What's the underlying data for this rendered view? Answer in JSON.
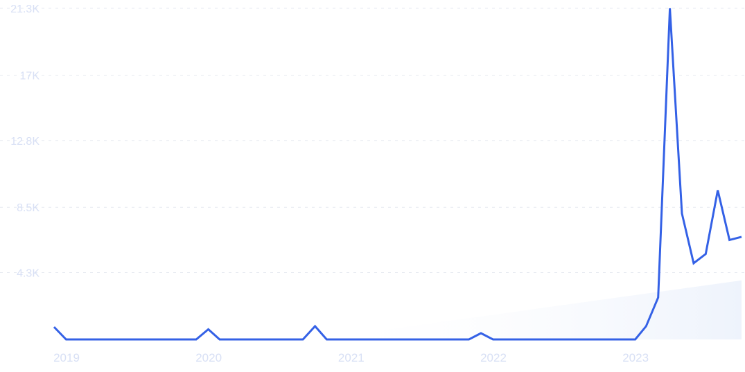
{
  "chart_data": {
    "type": "line",
    "title": "",
    "xlabel": "",
    "ylabel": "",
    "y_ticks": [
      "21.3K",
      "17K",
      "12.8K",
      "8.5K",
      "4.3K"
    ],
    "y_tick_values": [
      21300,
      17000,
      12800,
      8500,
      4300
    ],
    "x_ticks": [
      "2019",
      "2020",
      "2021",
      "2022",
      "2023"
    ],
    "x_tick_dates": [
      "2019-01-01",
      "2020-01-01",
      "2021-01-01",
      "2022-01-01",
      "2023-01-01"
    ],
    "ylim": [
      0,
      21300
    ],
    "xlim": [
      "2019-01-01",
      "2023-11-01"
    ],
    "grid": true,
    "legend": "none",
    "colors": {
      "line": "#3461e6",
      "trend_fill": "#f2f6fd",
      "tick_text": "#d8e0f5",
      "grid": "#e6e9f0"
    },
    "series": [
      {
        "x": [
          "2019-01-01",
          "2019-02-01",
          "2019-03-01",
          "2019-04-01",
          "2019-05-01",
          "2019-06-01",
          "2019-07-01",
          "2019-08-01",
          "2019-09-01",
          "2019-10-01",
          "2019-11-01",
          "2019-12-01",
          "2020-01-01",
          "2020-02-01",
          "2020-03-01",
          "2020-04-01",
          "2020-05-01",
          "2020-06-01",
          "2020-07-01",
          "2020-08-01",
          "2020-09-01",
          "2020-10-01",
          "2020-11-01",
          "2020-12-01",
          "2021-01-01",
          "2021-02-01",
          "2021-03-01",
          "2021-04-01",
          "2021-05-01",
          "2021-06-01",
          "2021-07-01",
          "2021-08-01",
          "2021-09-01",
          "2021-10-01",
          "2021-11-01",
          "2021-12-01",
          "2022-01-01",
          "2022-02-01",
          "2022-03-01",
          "2022-04-01",
          "2022-05-01",
          "2022-06-01",
          "2022-07-01",
          "2022-08-01",
          "2022-09-01",
          "2022-10-01",
          "2022-11-01",
          "2022-12-01",
          "2023-01-01",
          "2023-02-01",
          "2023-03-01",
          "2023-04-01",
          "2023-05-01",
          "2023-06-01",
          "2023-07-01",
          "2023-08-01",
          "2023-09-01",
          "2023-10-01",
          "2023-11-01"
        ],
        "values": [
          800,
          0,
          0,
          0,
          0,
          0,
          0,
          0,
          0,
          0,
          0,
          0,
          0,
          650,
          0,
          0,
          0,
          0,
          0,
          0,
          0,
          0,
          850,
          0,
          0,
          0,
          0,
          0,
          0,
          0,
          0,
          0,
          0,
          0,
          0,
          0,
          400,
          0,
          0,
          0,
          0,
          0,
          0,
          0,
          0,
          0,
          0,
          0,
          0,
          0,
          850,
          2700,
          21300,
          8100,
          4900,
          5500,
          9600,
          6400,
          6600
        ]
      }
    ],
    "trend_band": {
      "x": [
        "2020-11-01",
        "2023-11-01"
      ],
      "y": [
        0,
        3800
      ]
    }
  }
}
